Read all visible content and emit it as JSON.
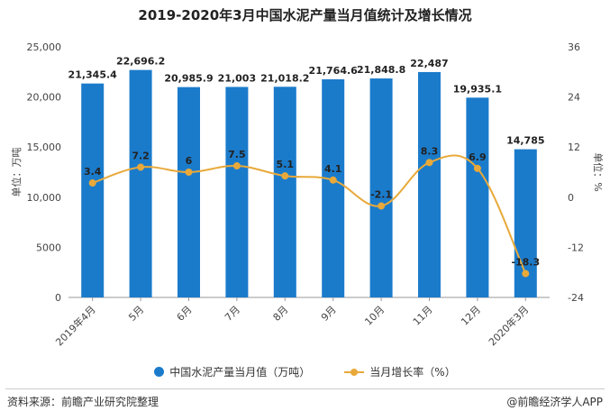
{
  "colors": {
    "bar": "#1B7BCB",
    "line": "#E8A93A",
    "axis": "#999999"
  },
  "chart_data": {
    "type": "bar",
    "title": "2019-2020年3月中国水泥产量当月值统计及增长情况",
    "categories": [
      "2019年4月",
      "5月",
      "6月",
      "7月",
      "8月",
      "9月",
      "10月",
      "11月",
      "12月",
      "2020年3月"
    ],
    "series": [
      {
        "name": "中国水泥产量当月值（万吨）",
        "type": "bar",
        "axis": "left",
        "values": [
          21345.4,
          22696.2,
          20985.9,
          21003,
          21018.2,
          21764.6,
          21848.8,
          22487,
          19935.1,
          14785
        ],
        "labels": [
          "21,345.4",
          "22,696.2",
          "20,985.9",
          "21,003",
          "21,018.2",
          "21,764.6",
          "21,848.8",
          "22,487",
          "19,935.1",
          "14,785"
        ]
      },
      {
        "name": "当月增长率（%）",
        "type": "line",
        "axis": "right",
        "values": [
          3.4,
          7.2,
          6,
          7.5,
          5.1,
          4.1,
          -2.1,
          8.3,
          6.9,
          -18.3
        ],
        "labels": [
          "3.4",
          "7.2",
          "6",
          "7.5",
          "5.1",
          "4.1",
          "-2.1",
          "8.3",
          "6.9",
          "-18.3"
        ]
      }
    ],
    "ylabel": "单位：万吨",
    "y2label": "单位：%",
    "ylim": [
      0,
      25000
    ],
    "y2lim": [
      -24,
      36
    ],
    "yticks": [
      "25,000",
      "20,000",
      "15,000",
      "10,000",
      "5000",
      "0"
    ],
    "y2ticks": [
      "36",
      "24",
      "12",
      "0",
      "-12",
      "-24"
    ],
    "grid": false,
    "legend_position": "bottom"
  },
  "footer": {
    "source": "资料来源：前瞻产业研究院整理",
    "brand": "@前瞻经济学人APP"
  }
}
